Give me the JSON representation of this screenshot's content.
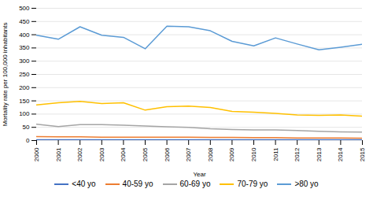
{
  "chart_data": {
    "type": "line",
    "x": [
      2000,
      2001,
      2002,
      2003,
      2004,
      2005,
      2006,
      2007,
      2008,
      2009,
      2010,
      2011,
      2012,
      2013,
      2014,
      2015
    ],
    "series": [
      {
        "name": "<40 yo",
        "color": "#4472C4",
        "values": [
          3,
          3,
          3,
          3,
          3,
          3,
          3,
          3,
          3,
          3,
          3,
          3,
          3,
          3,
          3,
          3
        ]
      },
      {
        "name": "40-59 yo",
        "color": "#ED7D31",
        "values": [
          15,
          14,
          14,
          13,
          13,
          13,
          13,
          13,
          12,
          12,
          11,
          11,
          10,
          10,
          10,
          9
        ]
      },
      {
        "name": "60-69 yo",
        "color": "#A5A5A5",
        "values": [
          62,
          53,
          60,
          60,
          58,
          55,
          52,
          50,
          45,
          42,
          40,
          40,
          38,
          35,
          33,
          32
        ]
      },
      {
        "name": "70-79 yo",
        "color": "#FFC000",
        "values": [
          135,
          143,
          148,
          140,
          143,
          115,
          128,
          130,
          125,
          110,
          107,
          103,
          97,
          95,
          97,
          92
        ]
      },
      {
        "name": ">80 yo",
        "color": "#5B9BD5",
        "values": [
          398,
          383,
          430,
          398,
          390,
          347,
          432,
          430,
          415,
          375,
          358,
          388,
          365,
          343,
          353,
          364
        ]
      }
    ],
    "xlabel": "Year",
    "ylabel": "Mortality rate per 100,000 inhabitants",
    "xlim": [
      2000,
      2015
    ],
    "xticks": [
      2000,
      2001,
      2002,
      2003,
      2004,
      2005,
      2006,
      2007,
      2008,
      2009,
      2010,
      2011,
      2012,
      2013,
      2014,
      2015
    ],
    "ylim": [
      0,
      500
    ],
    "yticks": [
      0,
      50,
      100,
      150,
      200,
      250,
      300,
      350,
      400,
      450,
      500
    ],
    "grid": true,
    "legend": "bottom"
  }
}
